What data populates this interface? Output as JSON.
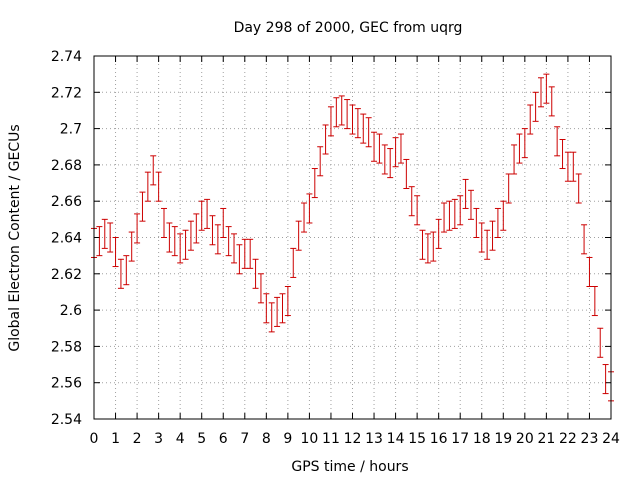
{
  "chart_data": {
    "type": "scatter",
    "title": "Day 298 of 2000, GEC from uqrg",
    "xlabel": "GPS time / hours",
    "ylabel": "Global Electron Content / GECUs",
    "xlim": [
      0,
      24
    ],
    "ylim": [
      2.54,
      2.74
    ],
    "x_ticks": [
      "0",
      "1",
      "2",
      "3",
      "4",
      "5",
      "6",
      "7",
      "8",
      "9",
      "10",
      "11",
      "12",
      "13",
      "14",
      "15",
      "16",
      "17",
      "18",
      "19",
      "20",
      "21",
      "22",
      "23",
      "24"
    ],
    "y_ticks": [
      "2.54",
      "2.56",
      "2.58",
      "2.6",
      "2.62",
      "2.64",
      "2.66",
      "2.68",
      "2.7",
      "2.72",
      "2.74"
    ],
    "grid": true,
    "series_color": "#cc0000",
    "error": 0.008,
    "x": [
      0.0,
      0.25,
      0.5,
      0.75,
      1.0,
      1.25,
      1.5,
      1.75,
      2.0,
      2.25,
      2.5,
      2.75,
      3.0,
      3.25,
      3.5,
      3.75,
      4.0,
      4.25,
      4.5,
      4.75,
      5.0,
      5.25,
      5.5,
      5.75,
      6.0,
      6.25,
      6.5,
      6.75,
      7.0,
      7.25,
      7.5,
      7.75,
      8.0,
      8.25,
      8.5,
      8.75,
      9.0,
      9.25,
      9.5,
      9.75,
      10.0,
      10.25,
      10.5,
      10.75,
      11.0,
      11.25,
      11.5,
      11.75,
      12.0,
      12.25,
      12.5,
      12.75,
      13.0,
      13.25,
      13.5,
      13.75,
      14.0,
      14.25,
      14.5,
      14.75,
      15.0,
      15.25,
      15.5,
      15.75,
      16.0,
      16.25,
      16.5,
      16.75,
      17.0,
      17.25,
      17.5,
      17.75,
      18.0,
      18.25,
      18.5,
      18.75,
      19.0,
      19.25,
      19.5,
      19.75,
      20.0,
      20.25,
      20.5,
      20.75,
      21.0,
      21.25,
      21.5,
      21.75,
      22.0,
      22.25,
      22.5,
      22.75,
      23.0,
      23.25,
      23.5,
      23.75,
      24.0
    ],
    "y": [
      2.637,
      2.638,
      2.642,
      2.64,
      2.632,
      2.62,
      2.622,
      2.635,
      2.645,
      2.657,
      2.668,
      2.677,
      2.668,
      2.648,
      2.64,
      2.638,
      2.634,
      2.636,
      2.641,
      2.645,
      2.652,
      2.653,
      2.644,
      2.639,
      2.648,
      2.638,
      2.634,
      2.628,
      2.631,
      2.631,
      2.62,
      2.612,
      2.601,
      2.596,
      2.599,
      2.601,
      2.605,
      2.626,
      2.641,
      2.651,
      2.656,
      2.67,
      2.682,
      2.694,
      2.704,
      2.709,
      2.71,
      2.708,
      2.705,
      2.703,
      2.7,
      2.698,
      2.69,
      2.689,
      2.683,
      2.681,
      2.687,
      2.689,
      2.675,
      2.66,
      2.655,
      2.636,
      2.634,
      2.635,
      2.642,
      2.651,
      2.652,
      2.653,
      2.655,
      2.664,
      2.658,
      2.648,
      2.64,
      2.636,
      2.641,
      2.648,
      2.652,
      2.667,
      2.683,
      2.689,
      2.692,
      2.705,
      2.712,
      2.72,
      2.722,
      2.715,
      2.693,
      2.686,
      2.679,
      2.679,
      2.667,
      2.639,
      2.621,
      2.605,
      2.582,
      2.562,
      2.558
    ]
  }
}
